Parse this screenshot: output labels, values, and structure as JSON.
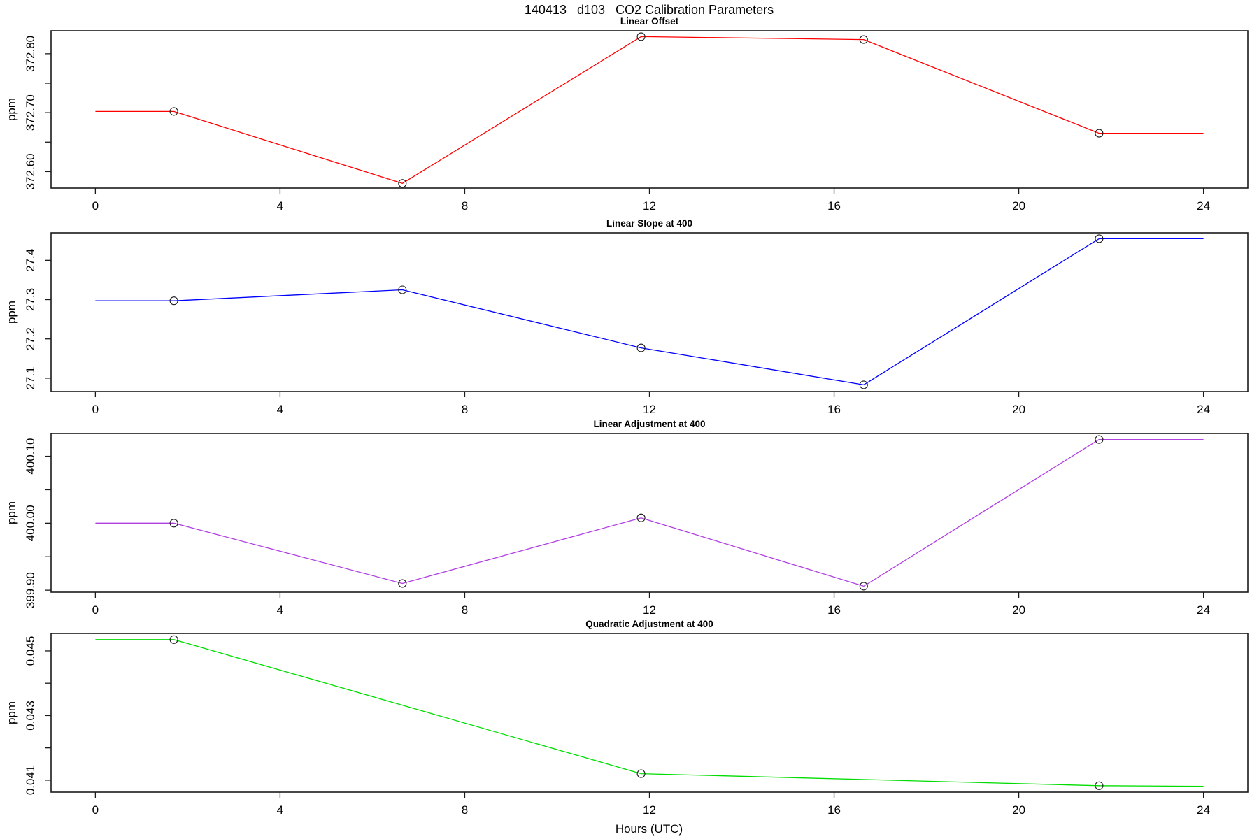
{
  "figure": {
    "title": "140413   d103   CO2 Calibration Parameters",
    "xlabel": "Hours (UTC)",
    "background": "#ffffff",
    "axis_color": "#1a1a1a",
    "marker_color": "#1a1a1a",
    "xlim": [
      -0.96,
      24.96
    ],
    "xticks": {
      "values": [
        0,
        4,
        8,
        12,
        16,
        20,
        24
      ],
      "labels": [
        "0",
        "4",
        "8",
        "12",
        "16",
        "20",
        "24"
      ]
    }
  },
  "chart_data": [
    {
      "type": "line",
      "title": "Linear Offset",
      "ylabel": "ppm",
      "line_color": "#FF0000",
      "marker": "open-circle",
      "x": [
        0,
        1.7,
        6.65,
        11.82,
        16.64,
        21.74,
        24
      ],
      "y": [
        372.702,
        372.702,
        372.58,
        372.829,
        372.824,
        372.665,
        372.665
      ],
      "marker_indices": [
        1,
        2,
        3,
        4,
        5
      ],
      "ylim": [
        372.572,
        372.839
      ],
      "yticks": {
        "values": [
          372.6,
          372.65,
          372.7,
          372.75,
          372.8
        ],
        "labels": [
          "372.60",
          "",
          "372.70",
          "",
          "372.80"
        ]
      }
    },
    {
      "type": "line",
      "title": "Linear Slope at 400",
      "ylabel": "ppm",
      "line_color": "#0000FF",
      "marker": "open-circle",
      "x": [
        0,
        1.7,
        6.65,
        11.82,
        16.64,
        21.74,
        24
      ],
      "y": [
        27.297,
        27.297,
        27.325,
        27.177,
        27.083,
        27.455,
        27.455
      ],
      "marker_indices": [
        1,
        2,
        3,
        4,
        5
      ],
      "ylim": [
        27.066,
        27.47
      ],
      "yticks": {
        "values": [
          27.1,
          27.2,
          27.3,
          27.4
        ],
        "labels": [
          "27.1",
          "27.2",
          "27.3",
          "27.4"
        ]
      }
    },
    {
      "type": "line",
      "title": "Linear Adjustment at 400",
      "ylabel": "ppm",
      "line_color": "#B040E0",
      "marker": "open-circle",
      "x": [
        0,
        1.7,
        6.65,
        11.82,
        16.64,
        21.74,
        24
      ],
      "y": [
        400.0,
        400.0,
        399.91,
        400.008,
        399.906,
        400.125,
        400.125
      ],
      "marker_indices": [
        1,
        2,
        3,
        4,
        5
      ],
      "ylim": [
        399.897,
        400.134
      ],
      "yticks": {
        "values": [
          399.9,
          399.95,
          400.0,
          400.05,
          400.1
        ],
        "labels": [
          "399.90",
          "",
          "400.00",
          "",
          "400.10"
        ]
      }
    },
    {
      "type": "line",
      "title": "Quadratic Adjustment at 400",
      "ylabel": "ppm",
      "line_color": "#00DD00",
      "marker": "open-circle",
      "x": [
        0,
        1.7,
        11.82,
        21.74,
        24
      ],
      "y": [
        0.04535,
        0.04535,
        0.0412,
        0.04083,
        0.04081
      ],
      "marker_indices": [
        1,
        2,
        3
      ],
      "ylim": [
        0.04063,
        0.04554
      ],
      "yticks": {
        "values": [
          0.041,
          0.042,
          0.043,
          0.044,
          0.045
        ],
        "labels": [
          "0.041",
          "",
          "0.043",
          "",
          "0.045"
        ]
      }
    }
  ]
}
